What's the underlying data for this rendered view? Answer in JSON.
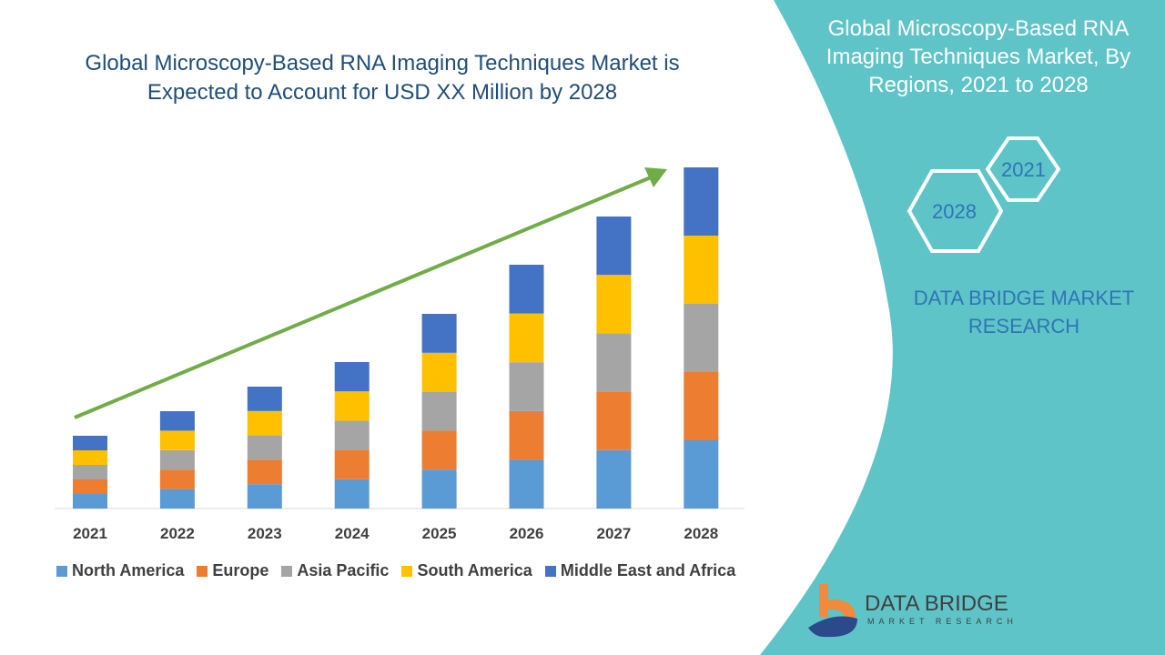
{
  "header": {
    "title": "Global Microscopy-Based RNA Imaging Techniques Market is Expected to Account for USD XX Million by 2028"
  },
  "side_panel": {
    "title": "Global Microscopy-Based RNA Imaging Techniques Market, By Regions, 2021 to 2028",
    "hex_top": "2021",
    "hex_bottom": "2028",
    "brand": "DATA BRIDGE MARKET RESEARCH",
    "logo_name": "DATA BRIDGE",
    "logo_sub": "MARKET RESEARCH"
  },
  "colors": {
    "panel": "#5fc4c8",
    "title": "#1f4e79",
    "arrow": "#70ad47"
  },
  "chart_data": {
    "type": "bar",
    "stacked": true,
    "title": "",
    "xlabel": "",
    "ylabel": "",
    "categories": [
      "2021",
      "2022",
      "2023",
      "2024",
      "2025",
      "2026",
      "2027",
      "2028"
    ],
    "trend_arrow": true,
    "grid": false,
    "legend": "bottom",
    "series": [
      {
        "name": "North America",
        "color": "#5b9bd5",
        "values": [
          1.6,
          2.14,
          2.68,
          3.22,
          4.28,
          5.36,
          6.42,
          7.5
        ]
      },
      {
        "name": "Europe",
        "color": "#ed7d31",
        "values": [
          1.6,
          2.14,
          2.68,
          3.22,
          4.28,
          5.36,
          6.42,
          7.5
        ]
      },
      {
        "name": "Asia Pacific",
        "color": "#a5a5a5",
        "values": [
          1.6,
          2.14,
          2.68,
          3.22,
          4.28,
          5.36,
          6.42,
          7.5
        ]
      },
      {
        "name": "South America",
        "color": "#ffc000",
        "values": [
          1.6,
          2.14,
          2.68,
          3.22,
          4.28,
          5.36,
          6.42,
          7.5
        ]
      },
      {
        "name": "Middle East and Africa",
        "color": "#4472c4",
        "values": [
          1.6,
          2.14,
          2.68,
          3.22,
          4.28,
          5.36,
          6.42,
          7.5
        ]
      }
    ]
  }
}
